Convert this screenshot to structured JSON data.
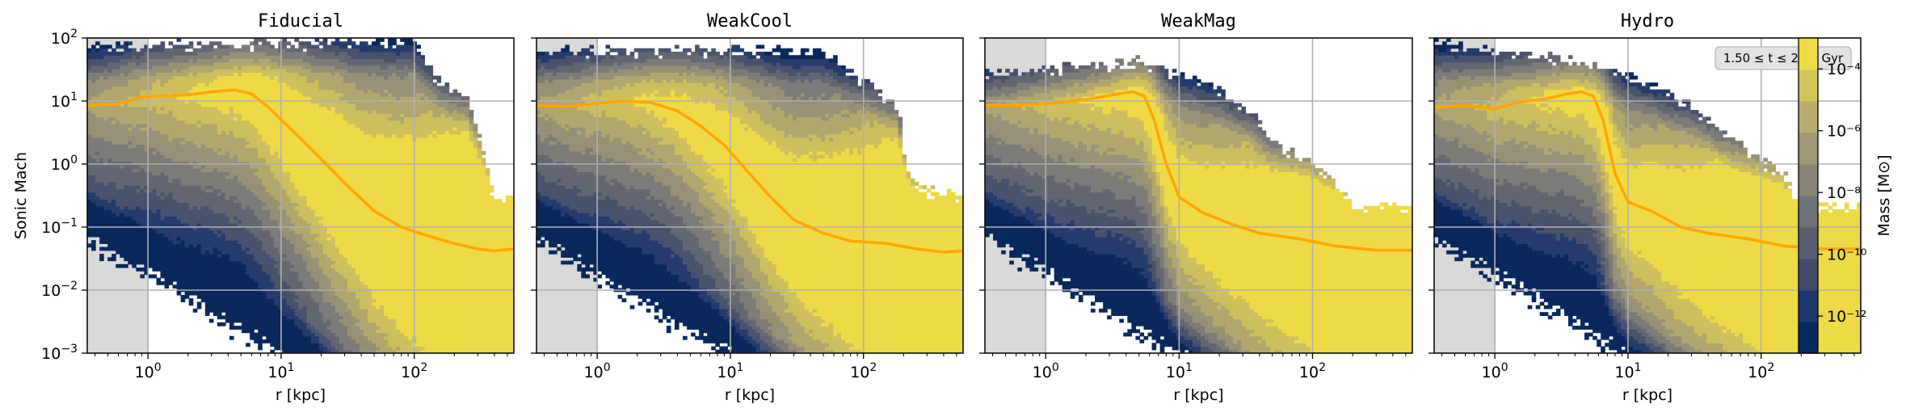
{
  "chart_data": {
    "type": "heatmap",
    "ylabel": "Sonic Mach",
    "xlabel": "r [kpc]",
    "x_scale": "log",
    "y_scale": "log",
    "xlim": [
      0.35,
      560
    ],
    "ylim": [
      0.001,
      100
    ],
    "grid": true,
    "annotation": "1.50 ≤ t ≤ 2.00 Gyr",
    "annotation_panel": "Hydro",
    "shaded_region_x": [
      0.35,
      1.0
    ],
    "colormap": "cividis",
    "colorbar": {
      "label": "Mass [M⊙]",
      "scale": "log",
      "ticks": [
        {
          "exp": -4,
          "label": "10⁻⁴"
        },
        {
          "exp": -6,
          "label": "10⁻⁶"
        },
        {
          "exp": -8,
          "label": "10⁻⁸"
        },
        {
          "exp": -10,
          "label": "10⁻¹⁰"
        },
        {
          "exp": -12,
          "label": "10⁻¹²"
        }
      ],
      "range_exp": [
        -13.2,
        -3.0
      ]
    },
    "x_ticks": [
      {
        "value": 1,
        "base": "10",
        "exp": "0"
      },
      {
        "value": 10,
        "base": "10",
        "exp": "1"
      },
      {
        "value": 100,
        "base": "10",
        "exp": "2"
      }
    ],
    "y_ticks": [
      {
        "value": 100,
        "base": "10",
        "exp": "2"
      },
      {
        "value": 10,
        "base": "10",
        "exp": "1"
      },
      {
        "value": 1,
        "base": "10",
        "exp": "0"
      },
      {
        "value": 0.1,
        "base": "10",
        "exp": "−1"
      },
      {
        "value": 0.01,
        "base": "10",
        "exp": "−2"
      },
      {
        "value": 0.001,
        "base": "10",
        "exp": "−3"
      }
    ],
    "line_color": "#ffa500",
    "panels": [
      {
        "title": "Fiducial",
        "median_line": [
          [
            0.35,
            8.5
          ],
          [
            0.6,
            9
          ],
          [
            0.9,
            11.5
          ],
          [
            1.2,
            12
          ],
          [
            2,
            12.5
          ],
          [
            3,
            14
          ],
          [
            4.5,
            15
          ],
          [
            6,
            13
          ],
          [
            8,
            8
          ],
          [
            12,
            3.5
          ],
          [
            20,
            1.2
          ],
          [
            30,
            0.5
          ],
          [
            50,
            0.18
          ],
          [
            80,
            0.1
          ],
          [
            120,
            0.075
          ],
          [
            200,
            0.055
          ],
          [
            300,
            0.045
          ],
          [
            400,
            0.042
          ],
          [
            560,
            0.045
          ]
        ],
        "upper_edge": [
          [
            0.35,
            70
          ],
          [
            100,
            85
          ],
          [
            150,
            20
          ],
          [
            250,
            10
          ],
          [
            300,
            3
          ],
          [
            400,
            0.25
          ],
          [
            560,
            0.25
          ]
        ],
        "lower_edge_x_min": [
          [
            0.05,
            0.45
          ],
          [
            0.03,
            0.8
          ],
          [
            0.01,
            1.5
          ],
          [
            0.003,
            3
          ],
          [
            0.001,
            6
          ]
        ]
      },
      {
        "title": "WeakCool",
        "median_line": [
          [
            0.35,
            8.5
          ],
          [
            0.6,
            8.2
          ],
          [
            0.9,
            9
          ],
          [
            1.5,
            10
          ],
          [
            2.5,
            9.5
          ],
          [
            4,
            7
          ],
          [
            6,
            4
          ],
          [
            9,
            2
          ],
          [
            14,
            0.7
          ],
          [
            20,
            0.3
          ],
          [
            30,
            0.13
          ],
          [
            50,
            0.08
          ],
          [
            80,
            0.06
          ],
          [
            150,
            0.055
          ],
          [
            250,
            0.045
          ],
          [
            400,
            0.04
          ],
          [
            560,
            0.042
          ]
        ],
        "upper_edge": [
          [
            0.35,
            60
          ],
          [
            50,
            60
          ],
          [
            90,
            22
          ],
          [
            120,
            15
          ],
          [
            180,
            8
          ],
          [
            220,
            0.55
          ],
          [
            300,
            0.35
          ],
          [
            560,
            0.3
          ]
        ],
        "lower_edge_x_min": [
          [
            0.05,
            0.45
          ],
          [
            0.03,
            0.8
          ],
          [
            0.01,
            1.5
          ],
          [
            0.003,
            3
          ],
          [
            0.001,
            6
          ]
        ]
      },
      {
        "title": "WeakMag",
        "median_line": [
          [
            0.35,
            8.5
          ],
          [
            0.6,
            8.5
          ],
          [
            1,
            9
          ],
          [
            2,
            10.5
          ],
          [
            3.5,
            13
          ],
          [
            4.5,
            14
          ],
          [
            5.5,
            12
          ],
          [
            6.5,
            5
          ],
          [
            8,
            1
          ],
          [
            10,
            0.3
          ],
          [
            15,
            0.17
          ],
          [
            25,
            0.11
          ],
          [
            40,
            0.08
          ],
          [
            80,
            0.065
          ],
          [
            150,
            0.05
          ],
          [
            300,
            0.043
          ],
          [
            560,
            0.043
          ]
        ],
        "upper_edge": [
          [
            0.35,
            25
          ],
          [
            5,
            40
          ],
          [
            8,
            30
          ],
          [
            20,
            15
          ],
          [
            35,
            6
          ],
          [
            50,
            2
          ],
          [
            90,
            1.2
          ],
          [
            150,
            0.5
          ],
          [
            200,
            0.2
          ],
          [
            560,
            0.2
          ]
        ],
        "lower_edge_x_min": [
          [
            0.05,
            0.45
          ],
          [
            0.03,
            0.8
          ],
          [
            0.01,
            1.5
          ],
          [
            0.003,
            3
          ],
          [
            0.001,
            6
          ]
        ]
      },
      {
        "title": "Hydro",
        "median_line": [
          [
            0.35,
            8
          ],
          [
            0.6,
            8.5
          ],
          [
            1,
            7.5
          ],
          [
            1.5,
            9.5
          ],
          [
            2.5,
            11
          ],
          [
            3.5,
            13
          ],
          [
            4.5,
            14
          ],
          [
            5.5,
            12
          ],
          [
            6.5,
            5
          ],
          [
            8,
            0.7
          ],
          [
            10,
            0.25
          ],
          [
            15,
            0.18
          ],
          [
            25,
            0.1
          ],
          [
            40,
            0.08
          ],
          [
            80,
            0.065
          ],
          [
            150,
            0.05
          ],
          [
            300,
            0.045
          ],
          [
            560,
            0.045
          ]
        ],
        "upper_edge": [
          [
            0.35,
            80
          ],
          [
            4,
            40
          ],
          [
            10,
            25
          ],
          [
            30,
            8
          ],
          [
            50,
            3
          ],
          [
            90,
            1.3
          ],
          [
            150,
            0.6
          ],
          [
            200,
            0.2
          ],
          [
            560,
            0.2
          ]
        ],
        "lower_edge_x_min": [
          [
            0.05,
            0.45
          ],
          [
            0.03,
            0.8
          ],
          [
            0.01,
            1.5
          ],
          [
            0.003,
            3
          ],
          [
            0.001,
            6
          ]
        ]
      }
    ]
  }
}
